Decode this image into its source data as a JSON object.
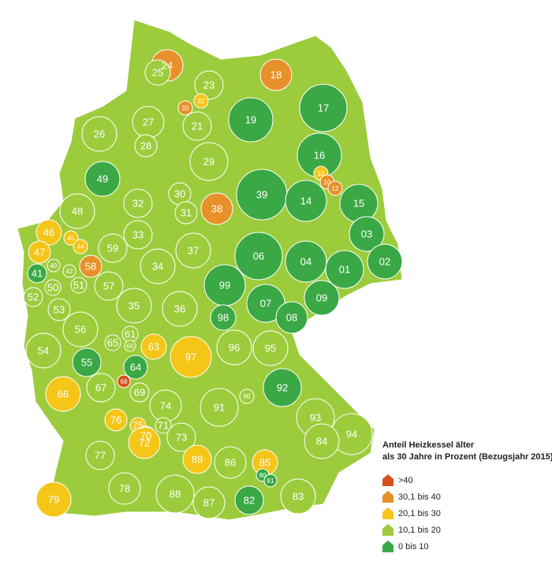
{
  "legend": {
    "title_line1": "Anteil Heizkessel älter",
    "title_line2": "als 30 Jahre in Prozent (Bezugsjahr 2015)",
    "items": [
      {
        "label": ">40",
        "color": "#d6501f"
      },
      {
        "label": "30,1 bis 40",
        "color": "#e8912a"
      },
      {
        "label": "20,1 bis 30",
        "color": "#f5c518"
      },
      {
        "label": "10,1 bis 20",
        "color": "#9ccc3c"
      },
      {
        "label": "0 bis 10",
        "color": "#3aa845"
      }
    ]
  },
  "regions": [
    {
      "label": "24",
      "class": 1
    },
    {
      "label": "25",
      "class": 3
    },
    {
      "label": "23",
      "class": 3
    },
    {
      "label": "22",
      "class": 2
    },
    {
      "label": "20",
      "class": 1
    },
    {
      "label": "18",
      "class": 1
    },
    {
      "label": "17",
      "class": 4
    },
    {
      "label": "19",
      "class": 4
    },
    {
      "label": "27",
      "class": 3
    },
    {
      "label": "21",
      "class": 3
    },
    {
      "label": "26",
      "class": 3
    },
    {
      "label": "28",
      "class": 3
    },
    {
      "label": "16",
      "class": 4
    },
    {
      "label": "29",
      "class": 3
    },
    {
      "label": "49",
      "class": 4
    },
    {
      "label": "13",
      "class": 2
    },
    {
      "label": "10",
      "class": 1
    },
    {
      "label": "12",
      "class": 1
    },
    {
      "label": "30",
      "class": 3
    },
    {
      "label": "39",
      "class": 4
    },
    {
      "label": "14",
      "class": 4
    },
    {
      "label": "15",
      "class": 4
    },
    {
      "label": "32",
      "class": 3
    },
    {
      "label": "38",
      "class": 1
    },
    {
      "label": "31",
      "class": 3
    },
    {
      "label": "48",
      "class": 3
    },
    {
      "label": "46",
      "class": 2
    },
    {
      "label": "45",
      "class": 2
    },
    {
      "label": "33",
      "class": 3
    },
    {
      "label": "03",
      "class": 4
    },
    {
      "label": "47",
      "class": 2
    },
    {
      "label": "44",
      "class": 2
    },
    {
      "label": "59",
      "class": 3
    },
    {
      "label": "37",
      "class": 3
    },
    {
      "label": "06",
      "class": 4
    },
    {
      "label": "04",
      "class": 4
    },
    {
      "label": "02",
      "class": 4
    },
    {
      "label": "58",
      "class": 1
    },
    {
      "label": "40",
      "class": 3
    },
    {
      "label": "42",
      "class": 3
    },
    {
      "label": "41",
      "class": 4
    },
    {
      "label": "34",
      "class": 3
    },
    {
      "label": "01",
      "class": 4
    },
    {
      "label": "50",
      "class": 3
    },
    {
      "label": "51",
      "class": 3
    },
    {
      "label": "57",
      "class": 3
    },
    {
      "label": "99",
      "class": 4
    },
    {
      "label": "52",
      "class": 3
    },
    {
      "label": "07",
      "class": 4
    },
    {
      "label": "09",
      "class": 4
    },
    {
      "label": "53",
      "class": 3
    },
    {
      "label": "35",
      "class": 3
    },
    {
      "label": "36",
      "class": 3
    },
    {
      "label": "98",
      "class": 4
    },
    {
      "label": "08",
      "class": 4
    },
    {
      "label": "56",
      "class": 3
    },
    {
      "label": "61",
      "class": 3
    },
    {
      "label": "63",
      "class": 2
    },
    {
      "label": "60",
      "class": 3
    },
    {
      "label": "65",
      "class": 3
    },
    {
      "label": "96",
      "class": 3
    },
    {
      "label": "95",
      "class": 3
    },
    {
      "label": "54",
      "class": 3
    },
    {
      "label": "97",
      "class": 2
    },
    {
      "label": "55",
      "class": 4
    },
    {
      "label": "64",
      "class": 4
    },
    {
      "label": "68",
      "class": 0
    },
    {
      "label": "67",
      "class": 3
    },
    {
      "label": "92",
      "class": 4
    },
    {
      "label": "69",
      "class": 3
    },
    {
      "label": "66",
      "class": 2
    },
    {
      "label": "90",
      "class": 3
    },
    {
      "label": "74",
      "class": 3
    },
    {
      "label": "91",
      "class": 3
    },
    {
      "label": "93",
      "class": 3
    },
    {
      "label": "76",
      "class": 2
    },
    {
      "label": "71",
      "class": 3
    },
    {
      "label": "75",
      "class": 2
    },
    {
      "label": "70",
      "class": 2
    },
    {
      "label": "94",
      "class": 3
    },
    {
      "label": "73",
      "class": 3
    },
    {
      "label": "77",
      "class": 3
    },
    {
      "label": "72",
      "class": 2
    },
    {
      "label": "84",
      "class": 3
    },
    {
      "label": "89",
      "class": 2
    },
    {
      "label": "86",
      "class": 3
    },
    {
      "label": "85",
      "class": 2
    },
    {
      "label": "80",
      "class": 4
    },
    {
      "label": "81",
      "class": 4
    },
    {
      "label": "79",
      "class": 2
    },
    {
      "label": "78",
      "class": 3
    },
    {
      "label": "88",
      "class": 3
    },
    {
      "label": "87",
      "class": 3
    },
    {
      "label": "82",
      "class": 4
    },
    {
      "label": "83",
      "class": 3
    }
  ]
}
